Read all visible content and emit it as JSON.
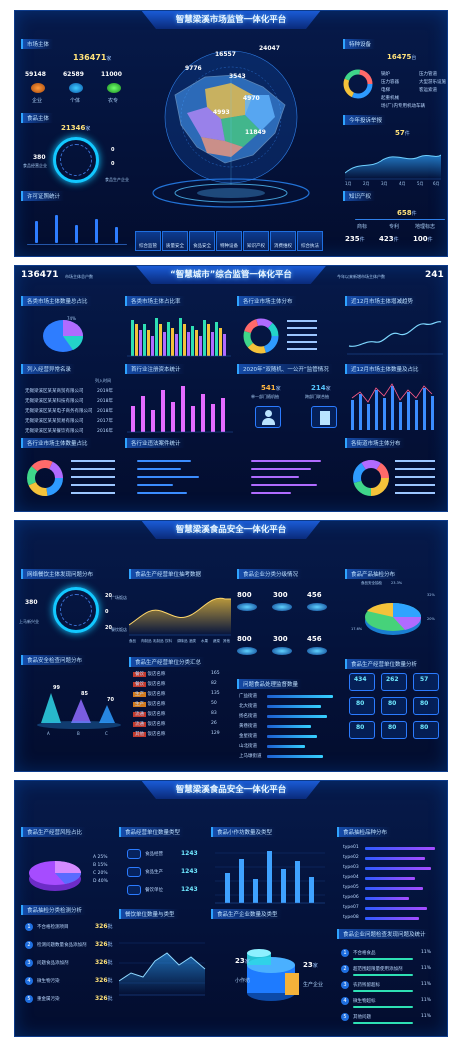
{
  "p1": {
    "title": "智慧梁溪市场监管一体化平台",
    "market_subject_label": "市场主体",
    "market_subject_total": "136471",
    "market_subject_unit": "家",
    "kpis": [
      {
        "value": "59148",
        "label": "企业"
      },
      {
        "value": "62589",
        "label": "个体"
      },
      {
        "value": "11000",
        "label": "农专"
      }
    ],
    "food_subject_label": "食品主体",
    "food_subject_total": "21346",
    "food_subject_unit": "家",
    "food_ring": {
      "left_value": "380",
      "left_label": "食品经营企业",
      "right_top": "0",
      "right_mid": "0",
      "right_bottom_label": "食品生产企业"
    },
    "license_label": "许可证照统计",
    "map_labels": [
      "16557",
      "24047",
      "9776",
      "3543",
      "4970",
      "4993",
      "11849"
    ],
    "special_label": "特种设备",
    "special_total": "16475",
    "special_unit": "台",
    "special_legend": [
      "锅炉",
      "压力容器",
      "电梯",
      "起重机械",
      "场(厂)内专用机动车辆",
      "压力管道",
      "大型游乐设施",
      "客运索道"
    ],
    "complaint_label": "今年投诉举报",
    "complaint_total": "57",
    "complaint_unit": "件",
    "ip_label": "知识产权",
    "ip_total": "658",
    "ip_unit": "件",
    "ip_items": [
      {
        "value": "235",
        "unit": "件",
        "label": "商标"
      },
      {
        "value": "423",
        "unit": "件",
        "label": "专利"
      },
      {
        "value": "100",
        "unit": "件",
        "label": "地理标志"
      }
    ],
    "buttons": [
      "综合监管",
      "质量安全",
      "食品安全",
      "特种设备",
      "知识产权",
      "消费维权",
      "综合执法",
      "信用监管"
    ],
    "line_x": [
      "1月",
      "2月",
      "3月",
      "4月",
      "5月",
      "6月"
    ]
  },
  "p2": {
    "top_left_number": "136471",
    "top_left_caption": "市场主体总户数",
    "title": "“智慧城市”综合监管一体化平台",
    "top_right_caption": "今年以来新增市场主体户数",
    "top_right_number": "241",
    "tags": [
      "各类市场主体数量总占比",
      "各类市场主体占比率",
      "各行业市场主体分布",
      "近12月市场主体增减趋势",
      "列入经营异常名录",
      "首行业注册资本统计",
      "2020年“双随机、一公开”监管情况",
      "近12月市场主体数量及占比",
      "各行业市场主体数量占比",
      "各行业违法案件统计",
      "各街道市场主体分布"
    ],
    "abnormal_header": "列入时间",
    "abnormal_rows": [
      {
        "name": "无锡梁溪区某某商贸有限公司",
        "year": "2019年"
      },
      {
        "name": "无锡梁溪区某某科技有限公司",
        "year": "2018年"
      },
      {
        "name": "无锡梁溪区某某电子商务有限公司",
        "year": "2018年"
      },
      {
        "name": "无锡梁溪区某某贸易有限公司",
        "year": "2017年"
      },
      {
        "name": "无锡梁溪区某某餐饮有限公司",
        "year": "2016年"
      }
    ],
    "check1_value": "541",
    "check1_unit": "家",
    "check1_label": "单一部门随机抽",
    "check2_value": "214",
    "check2_unit": "家",
    "check2_label": "跨部门联合抽",
    "pie_pct": "74%"
  },
  "p3": {
    "title": "智慧梁溪食品安全一体化平台",
    "tags": [
      "网络餐饮主体发现问题分布",
      "食品生产经营单位抽考数据",
      "食品企业分类分级情况",
      "食品产品抽检分布",
      "食品安全检查问题分布",
      "食品生产经营单位分类汇总",
      "问题食品处理监督数量",
      "食品生产经营单位数量分析"
    ],
    "ring": {
      "left_top": "380",
      "left_label": "上马新兴业",
      "right_top": "20",
      "right_top_label": "广场饭店",
      "right_mid": "0",
      "right_bottom": "20",
      "right_bottom_label": "餐饮饭店"
    },
    "tiles": [
      "800",
      "300",
      "456",
      "800",
      "300",
      "456"
    ],
    "pyramids": [
      {
        "value": "99",
        "label": "A"
      },
      {
        "value": "85",
        "label": "B"
      },
      {
        "value": "70",
        "label": "C"
      }
    ],
    "class_rows": [
      {
        "tag": "餐饮",
        "name": "饭店名称",
        "value": "165"
      },
      {
        "tag": "餐饮",
        "name": "饭店名称",
        "value": "82"
      },
      {
        "tag": "生产",
        "name": "饭店名称",
        "value": "135"
      },
      {
        "tag": "生产",
        "name": "饭店名称",
        "value": "50"
      },
      {
        "tag": "流通",
        "name": "饭店名称",
        "value": "83"
      },
      {
        "tag": "流通",
        "name": "饭店名称",
        "value": "26"
      },
      {
        "tag": "其他",
        "name": "饭店名称",
        "value": "129"
      }
    ],
    "street_names": [
      "广益街道",
      "北大街道",
      "扬名街道",
      "黄巷街道",
      "金星街道",
      "山北街道",
      "上马墩街道"
    ],
    "pie_labels": [
      "食品安全抽检",
      "23.3%",
      "32%",
      "20%",
      "17.6%"
    ],
    "stat_cards": [
      "434",
      "262",
      "57",
      "80",
      "80",
      "80",
      "80",
      "80",
      "80"
    ],
    "wave_x": [
      "食品",
      "肉制品",
      "乳制品",
      "饮料",
      "调味品",
      "酒类",
      "水果",
      "蔬菜",
      "其他"
    ]
  },
  "p4": {
    "title": "智慧梁溪食品安全一体化平台",
    "tags": [
      "食品生产经营风险占比",
      "食品经营单位数量类型",
      "食品小作坊数量及类型",
      "食品抽检品种分布",
      "食品抽检分类检测分析",
      "餐饮单位数量与类型",
      "食品生产企业数量及类型",
      "食品企业问题检查发现问题及统计"
    ],
    "risk_legend": [
      {
        "k": "A",
        "v": "25%"
      },
      {
        "k": "B",
        "v": "15%"
      },
      {
        "k": "C",
        "v": "20%"
      },
      {
        "k": "D",
        "v": "40%"
      }
    ],
    "unit_rows": [
      {
        "label": "食品经营",
        "value": "1243"
      },
      {
        "label": "食品生产",
        "value": "1243"
      },
      {
        "label": "餐饮单位",
        "value": "1243"
      }
    ],
    "test_rows": [
      {
        "n": "1",
        "name": "不合格检测项目",
        "value": "326",
        "unit": "批"
      },
      {
        "n": "2",
        "name": "检测问题数量食品添加剂",
        "value": "326",
        "unit": "批"
      },
      {
        "n": "3",
        "name": "问题食品添加剂",
        "value": "326",
        "unit": "批"
      },
      {
        "n": "4",
        "name": "微生物污染",
        "value": "326",
        "unit": "批"
      },
      {
        "n": "5",
        "name": "重金属污染",
        "value": "326",
        "unit": "批"
      }
    ],
    "variety_rows": [
      "type01",
      "type02",
      "type03",
      "type04",
      "type05",
      "type06",
      "type07",
      "type08"
    ],
    "issue_rows": [
      {
        "n": "1",
        "name": "不合格食品",
        "pct": "11%"
      },
      {
        "n": "2",
        "name": "超范围超限量使用添加剂",
        "pct": "11%"
      },
      {
        "n": "3",
        "name": "农药残留超标",
        "pct": "11%"
      },
      {
        "n": "4",
        "name": "微生物超标",
        "pct": "11%"
      },
      {
        "n": "5",
        "name": "其他问题",
        "pct": "11%"
      }
    ],
    "cyl_left": {
      "value": "23",
      "unit": "家",
      "label": "小作坊"
    },
    "cyl_right": {
      "value": "23",
      "unit": "家",
      "label": "生产企业"
    }
  }
}
